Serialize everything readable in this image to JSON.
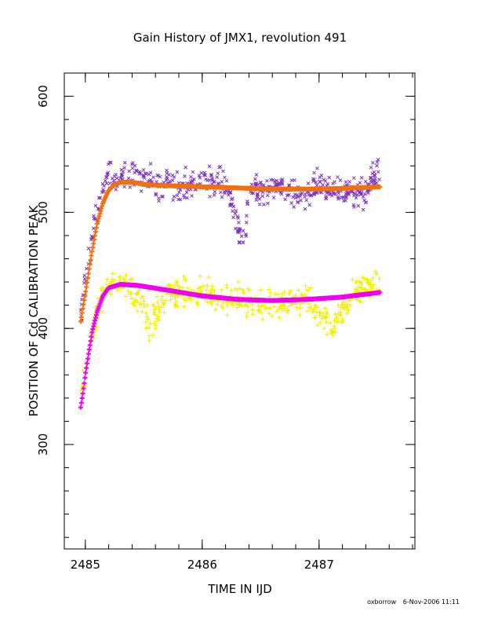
{
  "chart_data": {
    "type": "scatter",
    "title": "Gain History of JMX1, revolution 491",
    "xlabel": "TIME IN IJD",
    "ylabel": "POSITION OF Cd CALIBRATION PEAK",
    "xlim": [
      2484.82,
      2487.82
    ],
    "ylim": [
      210,
      620
    ],
    "x_ticks": [
      2485,
      2486,
      2487
    ],
    "x_tick_labels": [
      "2485",
      "2486",
      "2487"
    ],
    "y_ticks": [
      300,
      400,
      500,
      600
    ],
    "y_tick_labels": [
      "300",
      "400",
      "500",
      "600"
    ],
    "x_minor_step": 0.2,
    "y_minor_step": 20,
    "x_range_data": [
      2484.96,
      2487.52
    ],
    "grid": false,
    "series": [
      {
        "marker": "x",
        "color": "#7b2fbf",
        "x": [
          2484.96,
          2485.0,
          2485.05,
          2485.1,
          2485.15,
          2485.2,
          2485.3,
          2485.4,
          2485.6,
          2485.8,
          2486.0,
          2486.2,
          2486.36,
          2486.4,
          2486.6,
          2486.8,
          2487.0,
          2487.2,
          2487.4,
          2487.5
        ],
        "y": [
          412,
          440,
          475,
          505,
          522,
          530,
          528,
          532,
          525,
          520,
          527,
          524,
          470,
          518,
          522,
          515,
          524,
          520,
          518,
          535
        ]
      },
      {
        "marker": "fit",
        "color": "#f07010",
        "x": [
          2484.96,
          2485.0,
          2485.05,
          2485.1,
          2485.15,
          2485.2,
          2485.25,
          2485.3,
          2485.4,
          2485.5,
          2485.7,
          2486.0,
          2486.3,
          2486.6,
          2487.0,
          2487.3,
          2487.52
        ],
        "y": [
          406,
          430,
          462,
          490,
          508,
          519,
          524,
          526,
          526,
          524,
          523,
          522,
          521,
          520,
          520,
          521,
          522
        ]
      },
      {
        "marker": "+",
        "color": "#f0f000",
        "x": [
          2484.96,
          2485.0,
          2485.05,
          2485.1,
          2485.15,
          2485.2,
          2485.3,
          2485.5,
          2485.55,
          2485.7,
          2485.9,
          2486.1,
          2486.3,
          2486.5,
          2486.7,
          2486.9,
          2487.1,
          2487.3,
          2487.5
        ],
        "y": [
          345,
          360,
          390,
          415,
          430,
          438,
          440,
          420,
          400,
          432,
          430,
          428,
          425,
          420,
          422,
          428,
          400,
          432,
          438
        ]
      },
      {
        "marker": "fit",
        "color": "#f000f0",
        "x": [
          2484.96,
          2484.98,
          2485.0,
          2485.03,
          2485.06,
          2485.1,
          2485.15,
          2485.2,
          2485.3,
          2485.45,
          2485.7,
          2486.0,
          2486.3,
          2486.6,
          2486.9,
          2487.2,
          2487.52
        ],
        "y": [
          332,
          345,
          360,
          380,
          398,
          414,
          428,
          435,
          438,
          437,
          433,
          428,
          425,
          424,
          425,
          427,
          431
        ]
      }
    ]
  },
  "footer": {
    "user": "oxborrow",
    "date": "6-Nov-2006 11:11"
  }
}
